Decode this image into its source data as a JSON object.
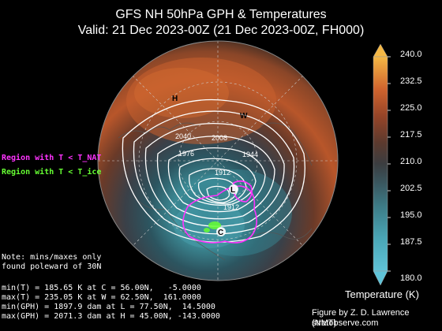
{
  "title": {
    "line1": "GFS NH 50hPa GPH & Temperatures",
    "line2": "Valid: 21 Dec 2023-00Z  (21 Dec 2023-00Z, FH000)"
  },
  "legend": {
    "nat_label": "Region with T < T_NAT",
    "ice_label": "Region with T < T_ice",
    "nat_color": "#ff33ff",
    "ice_color": "#66ff33"
  },
  "note": {
    "line1": "Note: mins/maxes only",
    "line2": "found poleward of 30N"
  },
  "stats": [
    "min(T) = 185.65 K at C = 56.00N,   -5.0000",
    "max(T) = 235.05 K at W = 62.50N,  161.0000",
    "min(GPH) = 1897.9 dam at L = 77.50N,  14.5000",
    "max(GPH) = 2071.3 dam at H = 45.00N, -143.0000"
  ],
  "markers": {
    "H": "H",
    "W": "W",
    "L": "L",
    "C": "C"
  },
  "contour_labels": [
    "2040",
    "2008",
    "1976",
    "1944",
    "1912",
    "1912"
  ],
  "colorbar": {
    "title": "Temperature (K)",
    "ticks": [
      "240.0",
      "232.5",
      "225.0",
      "217.5",
      "210.0",
      "202.5",
      "195.0",
      "187.5",
      "180.0"
    ]
  },
  "credit": {
    "line1": "Figure by Z. D. Lawrence (NMT)",
    "line2": "stratobserve.com"
  }
}
